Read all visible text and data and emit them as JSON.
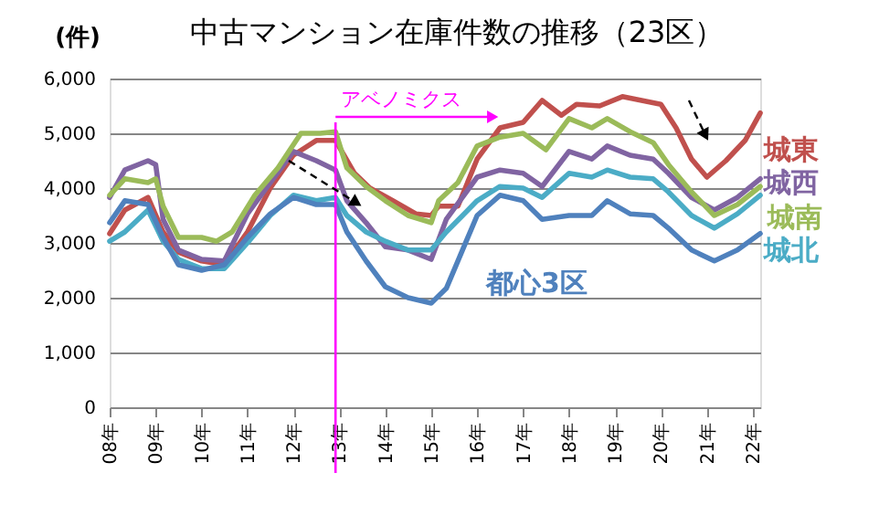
{
  "chart_data": {
    "type": "line",
    "title": "中古マンション在庫件数の推移（23区）",
    "ylabel": "(件)",
    "xlim": [
      "2008-01",
      "2022-03"
    ],
    "ylim": [
      0,
      6000
    ],
    "xticks": [
      {
        "value": "2008",
        "label": "08年"
      },
      {
        "value": "2009",
        "label": "09年"
      },
      {
        "value": "2010",
        "label": "10年"
      },
      {
        "value": "2011",
        "label": "11年"
      },
      {
        "value": "2012",
        "label": "12年"
      },
      {
        "value": "2013",
        "label": "13年"
      },
      {
        "value": "2014",
        "label": "14年"
      },
      {
        "value": "2015",
        "label": "15年"
      },
      {
        "value": "2016",
        "label": "16年"
      },
      {
        "value": "2017",
        "label": "17年"
      },
      {
        "value": "2018",
        "label": "18年"
      },
      {
        "value": "2019",
        "label": "19年"
      },
      {
        "value": "2020",
        "label": "20年"
      },
      {
        "value": "2021",
        "label": "21年"
      },
      {
        "value": "2022",
        "label": "22年"
      }
    ],
    "yticks": [
      0,
      {
        "value": 1000,
        "label": "1,000"
      },
      {
        "value": 2000,
        "label": "2,000"
      },
      {
        "value": 3000,
        "label": "3,000"
      },
      {
        "value": 4000,
        "label": "4,000"
      },
      {
        "value": 5000,
        "label": "5,000"
      },
      {
        "value": 6000,
        "label": "6,000"
      }
    ],
    "grid": "y",
    "legend": false,
    "marker": "none",
    "line_style": "solid",
    "ref_lines": [
      {
        "axis": "x",
        "value": "2012-12",
        "label": "アベノミクス",
        "color": "#ff00ff"
      }
    ],
    "series": [
      {
        "name": "城東",
        "color": "#c0504d",
        "x": [
          "2008-01",
          "2008-05",
          "2008-11",
          "2009-03",
          "2009-07",
          "2010-01",
          "2010-07",
          "2011-01",
          "2011-07",
          "2012-01",
          "2012-07",
          "2012-12",
          "2013-05",
          "2013-09",
          "2014-03",
          "2014-09",
          "2015-01",
          "2015-03",
          "2015-08",
          "2016-01",
          "2016-07",
          "2017-01",
          "2017-06",
          "2017-11",
          "2018-03",
          "2018-09",
          "2019-03",
          "2019-08",
          "2020-01",
          "2020-05",
          "2020-09",
          "2021-01",
          "2021-06",
          "2021-11",
          "2022-03"
        ],
        "values": [
          3170,
          3600,
          3830,
          3200,
          2830,
          2670,
          2600,
          3200,
          4000,
          4600,
          4870,
          4870,
          4270,
          4000,
          3770,
          3530,
          3500,
          3670,
          3670,
          4530,
          5100,
          5200,
          5600,
          5330,
          5530,
          5500,
          5670,
          5600,
          5530,
          5100,
          4530,
          4200,
          4500,
          4870,
          5370
        ]
      },
      {
        "name": "城西",
        "color": "#8064a2",
        "x": [
          "2008-01",
          "2008-05",
          "2008-11",
          "2009-01",
          "2009-03",
          "2009-07",
          "2010-01",
          "2010-07",
          "2011-01",
          "2011-07",
          "2012-01",
          "2012-07",
          "2012-12",
          "2013-03",
          "2013-08",
          "2014-01",
          "2014-07",
          "2015-01",
          "2015-05",
          "2016-01",
          "2016-07",
          "2017-01",
          "2017-06",
          "2018-01",
          "2018-07",
          "2018-11",
          "2019-05",
          "2019-11",
          "2020-03",
          "2020-09",
          "2021-03",
          "2021-09",
          "2022-03"
        ],
        "values": [
          3830,
          4330,
          4500,
          4430,
          3430,
          2870,
          2700,
          2670,
          3530,
          4100,
          4670,
          4500,
          4330,
          3770,
          3370,
          2930,
          2870,
          2700,
          3430,
          4200,
          4330,
          4270,
          4030,
          4670,
          4530,
          4770,
          4600,
          4530,
          4270,
          3830,
          3600,
          3830,
          4170
        ]
      },
      {
        "name": "城南",
        "color": "#9bbb59",
        "x": [
          "2008-01",
          "2008-05",
          "2008-11",
          "2009-01",
          "2009-03",
          "2009-07",
          "2010-01",
          "2010-05",
          "2010-09",
          "2011-03",
          "2011-09",
          "2012-03",
          "2012-08",
          "2012-12",
          "2013-03",
          "2013-08",
          "2014-01",
          "2014-07",
          "2015-01",
          "2015-03",
          "2015-08",
          "2016-01",
          "2016-07",
          "2017-01",
          "2017-07",
          "2018-01",
          "2018-07",
          "2018-11",
          "2019-05",
          "2019-11",
          "2020-03",
          "2020-09",
          "2021-03",
          "2021-09",
          "2022-03"
        ],
        "values": [
          3870,
          4170,
          4100,
          4170,
          3670,
          3100,
          3100,
          3030,
          3200,
          3870,
          4370,
          5000,
          5000,
          5030,
          4370,
          4030,
          3770,
          3500,
          3370,
          3770,
          4100,
          4770,
          4930,
          5000,
          4700,
          5270,
          5100,
          5270,
          5030,
          4830,
          4430,
          3930,
          3500,
          3700,
          4030
        ]
      },
      {
        "name": "城北",
        "color": "#4bacc6",
        "x": [
          "2008-01",
          "2008-05",
          "2008-11",
          "2009-03",
          "2009-07",
          "2010-01",
          "2010-07",
          "2011-01",
          "2011-07",
          "2012-01",
          "2012-07",
          "2012-12",
          "2013-03",
          "2013-08",
          "2014-01",
          "2014-07",
          "2015-01",
          "2015-05",
          "2016-01",
          "2016-07",
          "2017-01",
          "2017-06",
          "2018-01",
          "2018-07",
          "2018-11",
          "2019-05",
          "2019-11",
          "2020-03",
          "2020-09",
          "2021-03",
          "2021-09",
          "2022-03"
        ],
        "values": [
          3030,
          3200,
          3600,
          3030,
          2700,
          2530,
          2530,
          3000,
          3500,
          3870,
          3770,
          3830,
          3500,
          3200,
          3030,
          2870,
          2870,
          3200,
          3770,
          4030,
          4000,
          3830,
          4270,
          4200,
          4330,
          4200,
          4170,
          3930,
          3500,
          3270,
          3530,
          3870
        ]
      },
      {
        "name": "都心3区",
        "color": "#4f81bd",
        "x": [
          "2008-01",
          "2008-05",
          "2008-11",
          "2009-03",
          "2009-07",
          "2010-01",
          "2010-07",
          "2011-01",
          "2011-07",
          "2012-01",
          "2012-07",
          "2012-12",
          "2013-03",
          "2013-08",
          "2014-01",
          "2014-07",
          "2015-01",
          "2015-05",
          "2015-08",
          "2016-01",
          "2016-07",
          "2017-01",
          "2017-06",
          "2018-01",
          "2018-07",
          "2018-11",
          "2019-05",
          "2019-11",
          "2020-03",
          "2020-09",
          "2021-03",
          "2021-09",
          "2022-03"
        ],
        "values": [
          3370,
          3770,
          3700,
          3100,
          2600,
          2500,
          2600,
          3100,
          3530,
          3830,
          3700,
          3700,
          3200,
          2670,
          2200,
          2000,
          1900,
          2170,
          2670,
          3500,
          3870,
          3770,
          3430,
          3500,
          3500,
          3770,
          3530,
          3500,
          3270,
          2870,
          2670,
          2870,
          3170
        ]
      }
    ]
  }
}
